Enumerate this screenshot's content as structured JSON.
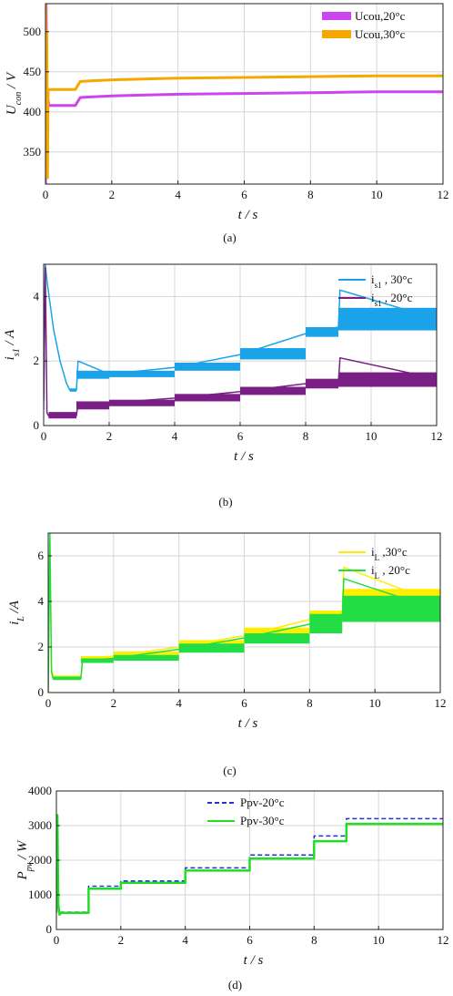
{
  "chart_data": [
    {
      "type": "line",
      "caption": "(a)",
      "xlabel": "t / s",
      "ylabel": "U_con / V",
      "xlim": [
        0,
        12
      ],
      "ylim": [
        310,
        535
      ],
      "xticks": [
        0,
        2,
        4,
        6,
        8,
        10,
        12
      ],
      "yticks": [
        350,
        400,
        450,
        500
      ],
      "grid": true,
      "legend_position": "top-right",
      "legend_style": "block",
      "series": [
        {
          "name": "Ucou,20°c",
          "color": "#cc44ee",
          "stroke_width": 3,
          "ripple": 0,
          "x": [
            0,
            0.02,
            0.05,
            0.08,
            0.1,
            0.15,
            0.9,
            1.05,
            1.5,
            2,
            4,
            6,
            8,
            9,
            10,
            12
          ],
          "y": [
            310,
            535,
            380,
            415,
            408,
            408,
            408,
            418,
            419,
            420,
            422,
            423,
            424,
            424.5,
            425,
            425
          ]
        },
        {
          "name": "Ucou,30°c",
          "color": "#f5a800",
          "stroke_width": 3,
          "ripple": 0,
          "x": [
            0,
            0.02,
            0.04,
            0.06,
            0.08,
            0.1,
            0.15,
            0.9,
            1.05,
            1.5,
            2,
            4,
            6,
            8,
            9,
            10,
            12
          ],
          "y": [
            535,
            320,
            500,
            318,
            425,
            428,
            428,
            428,
            438,
            439,
            440,
            442,
            443,
            444,
            444.5,
            445,
            445
          ]
        }
      ]
    },
    {
      "type": "line",
      "caption": "(b)",
      "xlabel": "t / s",
      "ylabel": "i_s1 / A",
      "xlim": [
        0,
        12
      ],
      "ylim": [
        0,
        5
      ],
      "xticks": [
        0,
        2,
        4,
        6,
        8,
        10,
        12
      ],
      "yticks": [
        0,
        2,
        4
      ],
      "grid": true,
      "legend_position": "top-right",
      "legend_style": "line",
      "series": [
        {
          "name": "i_s1 , 30°c",
          "color": "#1aa3e8",
          "stroke_width": 1.5,
          "ripple": 0,
          "bands": [
            [
              0.8,
              1.0,
              1.05,
              1.15
            ],
            [
              1.0,
              2.0,
              1.45,
              1.7
            ],
            [
              2.0,
              4.0,
              1.5,
              1.7
            ],
            [
              4.0,
              6.0,
              1.7,
              1.95
            ],
            [
              6.0,
              8.0,
              2.05,
              2.4
            ],
            [
              8.0,
              9.0,
              2.75,
              3.05
            ],
            [
              9.0,
              12.0,
              2.95,
              3.65
            ]
          ],
          "x": [
            0,
            0.05,
            0.1,
            0.3,
            0.5,
            0.7,
            0.8,
            1.0,
            1.05,
            2.0,
            4.0,
            6.0,
            8.0,
            9.0,
            9.05,
            12
          ],
          "y": [
            0.5,
            5,
            4.5,
            3.0,
            2.0,
            1.3,
            1.1,
            1.1,
            2.0,
            1.6,
            1.8,
            2.2,
            2.85,
            3.05,
            4.2,
            3.3
          ]
        },
        {
          "name": "i_s1 , 20°c",
          "color": "#7a1f86",
          "stroke_width": 1.5,
          "ripple": 0,
          "bands": [
            [
              0.15,
              1.0,
              0.22,
              0.42
            ],
            [
              1.0,
              2.0,
              0.5,
              0.75
            ],
            [
              2.0,
              4.0,
              0.6,
              0.8
            ],
            [
              4.0,
              6.0,
              0.75,
              0.98
            ],
            [
              6.0,
              8.0,
              0.95,
              1.2
            ],
            [
              8.0,
              9.0,
              1.15,
              1.45
            ],
            [
              9.0,
              12.0,
              1.2,
              1.65
            ]
          ],
          "x": [
            0,
            0.05,
            0.1,
            0.15,
            1.0,
            1.05,
            2.0,
            4.0,
            6.0,
            8.0,
            9.0,
            9.05,
            12
          ],
          "y": [
            0.8,
            4.9,
            0.4,
            0.3,
            0.3,
            0.7,
            0.7,
            0.85,
            1.05,
            1.3,
            1.35,
            2.1,
            1.45
          ]
        }
      ]
    },
    {
      "type": "line",
      "caption": "(c)",
      "xlabel": "t / s",
      "ylabel": "i_L /A",
      "xlim": [
        0,
        12
      ],
      "ylim": [
        0,
        7
      ],
      "xticks": [
        0,
        2,
        4,
        6,
        8,
        10,
        12
      ],
      "yticks": [
        0,
        2,
        4,
        6
      ],
      "grid": true,
      "legend_position": "top-right",
      "legend_style": "line",
      "series": [
        {
          "name": "i_L ,30°c",
          "color": "#ffee00",
          "stroke_width": 1.5,
          "ripple": 0,
          "bands": [
            [
              0.15,
              1.0,
              0.55,
              0.75
            ],
            [
              1.0,
              2.0,
              1.35,
              1.6
            ],
            [
              2.0,
              4.0,
              1.45,
              1.8
            ],
            [
              4.0,
              6.0,
              1.85,
              2.3
            ],
            [
              6.0,
              8.0,
              2.3,
              2.85
            ],
            [
              8.0,
              9.0,
              2.75,
              3.6
            ],
            [
              9.0,
              12.0,
              3.15,
              4.55
            ]
          ],
          "x": [
            0,
            0.05,
            0.1,
            0.15,
            1.0,
            1.05,
            2.0,
            4.0,
            6.0,
            8.0,
            9.0,
            9.05,
            12
          ],
          "y": [
            0,
            7,
            1.2,
            0.65,
            0.65,
            1.5,
            1.6,
            2.0,
            2.5,
            3.2,
            3.5,
            5.5,
            3.9
          ]
        },
        {
          "name": "i_L , 20°c",
          "color": "#22dd44",
          "stroke_width": 1.5,
          "ripple": 0,
          "bands": [
            [
              0.15,
              1.0,
              0.55,
              0.7
            ],
            [
              1.0,
              2.0,
              1.3,
              1.5
            ],
            [
              2.0,
              4.0,
              1.4,
              1.65
            ],
            [
              4.0,
              6.0,
              1.75,
              2.15
            ],
            [
              6.0,
              8.0,
              2.15,
              2.6
            ],
            [
              8.0,
              9.0,
              2.6,
              3.45
            ],
            [
              9.0,
              12.0,
              3.1,
              4.25
            ]
          ],
          "x": [
            0,
            0.05,
            0.1,
            0.15,
            1.0,
            1.05,
            2.0,
            4.0,
            6.0,
            8.0,
            9.0,
            9.05,
            12
          ],
          "y": [
            0,
            7,
            0.9,
            0.6,
            0.6,
            1.4,
            1.5,
            1.9,
            2.4,
            3.0,
            3.3,
            5.0,
            3.6
          ]
        }
      ]
    },
    {
      "type": "line",
      "caption": "(d)",
      "xlabel": "t / s",
      "ylabel": "P_pv / W",
      "xlim": [
        0,
        12
      ],
      "ylim": [
        0,
        4000
      ],
      "xticks": [
        0,
        2,
        4,
        6,
        8,
        10,
        12
      ],
      "yticks": [
        0,
        1000,
        2000,
        3000,
        4000
      ],
      "grid": true,
      "legend_position": "top-center",
      "legend_style": "line",
      "series": [
        {
          "name": "Ppv-20°c",
          "color": "#2233dd",
          "stroke_width": 1.5,
          "dashed": true,
          "ripple": 0,
          "x": [
            0,
            0.03,
            0.06,
            0.1,
            0.15,
            1.0,
            1.0,
            2.0,
            2.0,
            4.0,
            4.0,
            6.0,
            6.0,
            8.0,
            8.0,
            9.0,
            9.0,
            12
          ],
          "y": [
            500,
            3300,
            800,
            450,
            500,
            500,
            1250,
            1250,
            1400,
            1400,
            1780,
            1780,
            2150,
            2150,
            2700,
            2700,
            3200,
            3200
          ]
        },
        {
          "name": "Ppv-30°c",
          "color": "#22dd22",
          "stroke_width": 2.5,
          "ripple": 0,
          "x": [
            0,
            0.03,
            0.06,
            0.1,
            0.15,
            1.0,
            1.0,
            2.0,
            2.0,
            4.0,
            4.0,
            6.0,
            6.0,
            8.0,
            8.0,
            9.0,
            9.0,
            12
          ],
          "y": [
            480,
            3300,
            700,
            430,
            480,
            480,
            1180,
            1180,
            1350,
            1350,
            1700,
            1700,
            2050,
            2050,
            2550,
            2550,
            3050,
            3050
          ]
        }
      ]
    }
  ]
}
